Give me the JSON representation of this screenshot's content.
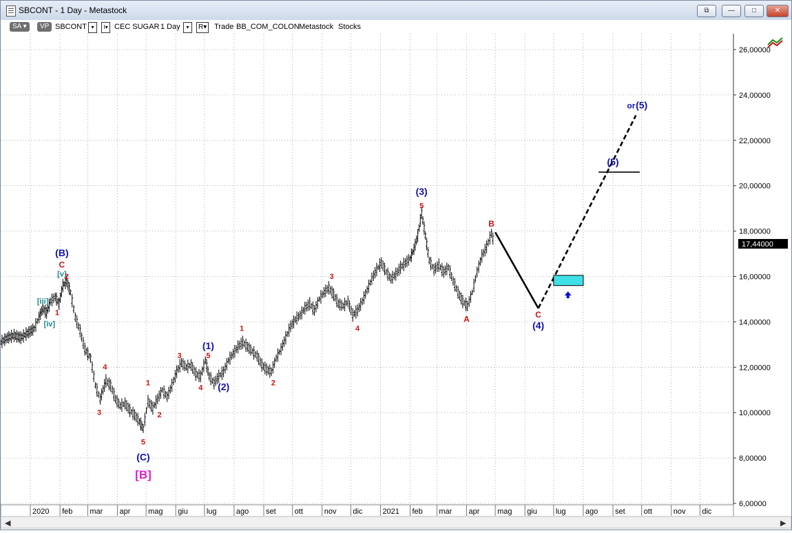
{
  "window": {
    "title": "SBCONT - 1 Day - Metastock",
    "buttons": [
      "⧉",
      "—",
      "□",
      "✕"
    ]
  },
  "toolbar": {
    "sa": "SA",
    "vp": "VP",
    "symbol": "SBCONT",
    "name": "CEC SUGAR",
    "period": "1 Day",
    "r": "R",
    "trade": "Trade",
    "provider": "BB_COM_COLON",
    "source": "Metastock",
    "type": "Stocks"
  },
  "colors": {
    "price": "#000000",
    "minor_label": "#d01010",
    "major_label": "#1010b0",
    "sub_label": "#208888",
    "abc_label": "#e020c8",
    "target_box": "#40e0e8",
    "last_price_bg": "#000000"
  },
  "chart_data": {
    "type": "line",
    "title": "",
    "xlabel": "",
    "ylabel": "",
    "ylim": [
      6,
      27
    ],
    "y_ticks": [
      "6,00000",
      "8,00000",
      "10,00000",
      "12,00000",
      "14,00000",
      "16,00000",
      "18,00000",
      "20,00000",
      "22,00000",
      "24,00000",
      "26,00000"
    ],
    "x_ticks": [
      {
        "label": "2020",
        "x": "2020-01"
      },
      {
        "label": "feb",
        "x": "2020-02"
      },
      {
        "label": "mar",
        "x": "2020-03"
      },
      {
        "label": "apr",
        "x": "2020-04"
      },
      {
        "label": "mag",
        "x": "2020-05"
      },
      {
        "label": "giu",
        "x": "2020-06"
      },
      {
        "label": "lug",
        "x": "2020-07"
      },
      {
        "label": "ago",
        "x": "2020-08"
      },
      {
        "label": "set",
        "x": "2020-09"
      },
      {
        "label": "ott",
        "x": "2020-10"
      },
      {
        "label": "nov",
        "x": "2020-11"
      },
      {
        "label": "dic",
        "x": "2020-12"
      },
      {
        "label": "2021",
        "x": "2021-01"
      },
      {
        "label": "feb",
        "x": "2021-02"
      },
      {
        "label": "mar",
        "x": "2021-03"
      },
      {
        "label": "apr",
        "x": "2021-04"
      },
      {
        "label": "mag",
        "x": "2021-05"
      },
      {
        "label": "giu",
        "x": "2021-06"
      },
      {
        "label": "lug",
        "x": "2021-07"
      },
      {
        "label": "ago",
        "x": "2021-08"
      },
      {
        "label": "set",
        "x": "2021-09"
      },
      {
        "label": "ott",
        "x": "2021-10"
      },
      {
        "label": "nov",
        "x": "2021-11"
      },
      {
        "label": "dic",
        "x": "2021-12"
      }
    ],
    "grid": true,
    "last_price": {
      "value": 17.44,
      "label": "17,44000"
    },
    "series": [
      {
        "values": [
          [
            "2019-12-01",
            13.1
          ],
          [
            "2019-12-08",
            13.3
          ],
          [
            "2019-12-15",
            13.4
          ],
          [
            "2019-12-22",
            13.3
          ],
          [
            "2019-12-29",
            13.5
          ],
          [
            "2020-01-05",
            13.7
          ],
          [
            "2020-01-10",
            14.2
          ],
          [
            "2020-01-14",
            14.6
          ],
          [
            "2020-01-18",
            14.4
          ],
          [
            "2020-01-22",
            14.9
          ],
          [
            "2020-01-27",
            15.1
          ],
          [
            "2020-01-31",
            14.8
          ],
          [
            "2020-02-04",
            15.6
          ],
          [
            "2020-02-08",
            15.8
          ],
          [
            "2020-02-12",
            15.3
          ],
          [
            "2020-02-17",
            14.2
          ],
          [
            "2020-02-22",
            13.6
          ],
          [
            "2020-02-27",
            12.8
          ],
          [
            "2020-03-04",
            12.4
          ],
          [
            "2020-03-09",
            11.2
          ],
          [
            "2020-03-14",
            10.6
          ],
          [
            "2020-03-20",
            11.4
          ],
          [
            "2020-03-25",
            11.2
          ],
          [
            "2020-03-30",
            10.6
          ],
          [
            "2020-04-04",
            10.3
          ],
          [
            "2020-04-09",
            10.4
          ],
          [
            "2020-04-14",
            10.1
          ],
          [
            "2020-04-19",
            9.9
          ],
          [
            "2020-04-24",
            9.6
          ],
          [
            "2020-04-28",
            9.3
          ],
          [
            "2020-05-03",
            10.5
          ],
          [
            "2020-05-08",
            10.2
          ],
          [
            "2020-05-13",
            10.6
          ],
          [
            "2020-05-18",
            11.0
          ],
          [
            "2020-05-23",
            10.7
          ],
          [
            "2020-05-28",
            11.2
          ],
          [
            "2020-06-02",
            11.8
          ],
          [
            "2020-06-07",
            12.2
          ],
          [
            "2020-06-12",
            12.0
          ],
          [
            "2020-06-17",
            12.1
          ],
          [
            "2020-06-22",
            11.7
          ],
          [
            "2020-06-27",
            11.6
          ],
          [
            "2020-07-02",
            12.3
          ],
          [
            "2020-07-06",
            11.6
          ],
          [
            "2020-07-11",
            11.3
          ],
          [
            "2020-07-16",
            11.6
          ],
          [
            "2020-07-21",
            11.8
          ],
          [
            "2020-07-26",
            12.3
          ],
          [
            "2020-07-31",
            12.6
          ],
          [
            "2020-08-05",
            12.9
          ],
          [
            "2020-08-10",
            13.1
          ],
          [
            "2020-08-15",
            12.9
          ],
          [
            "2020-08-20",
            12.7
          ],
          [
            "2020-08-25",
            12.5
          ],
          [
            "2020-08-30",
            12.1
          ],
          [
            "2020-09-04",
            11.9
          ],
          [
            "2020-09-09",
            11.8
          ],
          [
            "2020-09-14",
            12.4
          ],
          [
            "2020-09-19",
            12.8
          ],
          [
            "2020-09-24",
            13.3
          ],
          [
            "2020-09-29",
            13.8
          ],
          [
            "2020-10-04",
            14.1
          ],
          [
            "2020-10-09",
            14.3
          ],
          [
            "2020-10-14",
            14.6
          ],
          [
            "2020-10-19",
            14.8
          ],
          [
            "2020-10-24",
            14.5
          ],
          [
            "2020-10-29",
            15.0
          ],
          [
            "2020-11-03",
            15.3
          ],
          [
            "2020-11-08",
            15.5
          ],
          [
            "2020-11-13",
            15.2
          ],
          [
            "2020-11-18",
            14.8
          ],
          [
            "2020-11-23",
            14.7
          ],
          [
            "2020-11-28",
            14.9
          ],
          [
            "2020-12-03",
            14.3
          ],
          [
            "2020-12-08",
            14.5
          ],
          [
            "2020-12-13",
            14.9
          ],
          [
            "2020-12-18",
            15.4
          ],
          [
            "2020-12-23",
            15.9
          ],
          [
            "2020-12-28",
            16.3
          ],
          [
            "2021-01-02",
            16.6
          ],
          [
            "2021-01-07",
            16.2
          ],
          [
            "2021-01-12",
            15.9
          ],
          [
            "2021-01-17",
            16.1
          ],
          [
            "2021-01-22",
            16.4
          ],
          [
            "2021-01-27",
            16.6
          ],
          [
            "2021-02-01",
            16.8
          ],
          [
            "2021-02-05",
            17.2
          ],
          [
            "2021-02-09",
            17.8
          ],
          [
            "2021-02-13",
            18.8
          ],
          [
            "2021-02-17",
            17.8
          ],
          [
            "2021-02-21",
            16.7
          ],
          [
            "2021-02-26",
            16.3
          ],
          [
            "2021-03-03",
            16.5
          ],
          [
            "2021-03-08",
            16.2
          ],
          [
            "2021-03-13",
            16.4
          ],
          [
            "2021-03-18",
            15.8
          ],
          [
            "2021-03-23",
            15.3
          ],
          [
            "2021-03-28",
            14.9
          ],
          [
            "2021-04-02",
            14.7
          ],
          [
            "2021-04-07",
            15.3
          ],
          [
            "2021-04-12",
            16.2
          ],
          [
            "2021-04-17",
            16.9
          ],
          [
            "2021-04-22",
            17.3
          ],
          [
            "2021-04-27",
            17.9
          ],
          [
            "2021-04-30",
            17.44
          ]
        ]
      }
    ],
    "projections": [
      {
        "name": "wave-c-down",
        "style": "solid",
        "from": [
          "2021-05-01",
          17.95
        ],
        "to": [
          "2021-06-15",
          14.6
        ]
      },
      {
        "name": "wave-5-up",
        "style": "dashed",
        "from": [
          "2021-06-15",
          14.6
        ],
        "to": [
          "2021-09-25",
          23.1
        ]
      },
      {
        "name": "wave-5-target",
        "style": "solid",
        "from": [
          "2021-08-17",
          20.6
        ],
        "to": [
          "2021-09-29",
          20.6
        ]
      }
    ],
    "target_zone": {
      "x0": "2021-07-01",
      "x1": "2021-08-01",
      "y0": 15.6,
      "y1": 16.05
    },
    "arrow_up": {
      "x": "2021-07-16",
      "y": 15.1
    },
    "annotations": [
      {
        "text": "[iii]",
        "x": "2020-01-14",
        "y": 14.8,
        "color": "sub_label",
        "size": 11
      },
      {
        "text": "[iv]",
        "x": "2020-01-21",
        "y": 13.8,
        "color": "sub_label",
        "size": 11
      },
      {
        "text": "[v]",
        "x": "2020-02-03",
        "y": 16.0,
        "color": "sub_label",
        "size": 11
      },
      {
        "text": "1",
        "x": "2020-01-29",
        "y": 14.3,
        "color": "minor_label",
        "size": 11
      },
      {
        "text": "2",
        "x": "2020-02-08",
        "y": 15.9,
        "color": "minor_label",
        "size": 11
      },
      {
        "text": "C",
        "x": "2020-02-03",
        "y": 16.4,
        "color": "minor_label",
        "size": 12
      },
      {
        "text": "(B)",
        "x": "2020-02-03",
        "y": 16.9,
        "color": "major_label",
        "size": 14
      },
      {
        "text": "4",
        "x": "2020-03-19",
        "y": 11.9,
        "color": "minor_label",
        "size": 11
      },
      {
        "text": "3",
        "x": "2020-03-13",
        "y": 9.9,
        "color": "minor_label",
        "size": 11
      },
      {
        "text": "5",
        "x": "2020-04-28",
        "y": 8.6,
        "color": "minor_label",
        "size": 11
      },
      {
        "text": "(C)",
        "x": "2020-04-28",
        "y": 7.9,
        "color": "major_label",
        "size": 14
      },
      {
        "text": "[B]",
        "x": "2020-04-28",
        "y": 7.1,
        "color": "abc_label",
        "size": 17
      },
      {
        "text": "1",
        "x": "2020-05-03",
        "y": 11.2,
        "color": "minor_label",
        "size": 11
      },
      {
        "text": "2",
        "x": "2020-05-15",
        "y": 9.8,
        "color": "minor_label",
        "size": 11
      },
      {
        "text": "3",
        "x": "2020-06-05",
        "y": 12.4,
        "color": "minor_label",
        "size": 11
      },
      {
        "text": "4",
        "x": "2020-06-27",
        "y": 11.0,
        "color": "minor_label",
        "size": 11
      },
      {
        "text": "5",
        "x": "2020-07-05",
        "y": 12.4,
        "color": "minor_label",
        "size": 11
      },
      {
        "text": "(1)",
        "x": "2020-07-05",
        "y": 12.8,
        "color": "major_label",
        "size": 14
      },
      {
        "text": "(2)",
        "x": "2020-07-21",
        "y": 11.0,
        "color": "major_label",
        "size": 14
      },
      {
        "text": "1",
        "x": "2020-08-09",
        "y": 13.6,
        "color": "minor_label",
        "size": 11
      },
      {
        "text": "2",
        "x": "2020-09-11",
        "y": 11.2,
        "color": "minor_label",
        "size": 11
      },
      {
        "text": "3",
        "x": "2020-11-11",
        "y": 15.9,
        "color": "minor_label",
        "size": 11
      },
      {
        "text": "4",
        "x": "2020-12-08",
        "y": 13.6,
        "color": "minor_label",
        "size": 11
      },
      {
        "text": "5",
        "x": "2021-02-13",
        "y": 19.0,
        "color": "minor_label",
        "size": 11
      },
      {
        "text": "(3)",
        "x": "2021-02-13",
        "y": 19.6,
        "color": "major_label",
        "size": 14
      },
      {
        "text": "A",
        "x": "2021-04-01",
        "y": 14.0,
        "color": "minor_label",
        "size": 12
      },
      {
        "text": "B",
        "x": "2021-04-27",
        "y": 18.2,
        "color": "minor_label",
        "size": 12
      },
      {
        "text": "C",
        "x": "2021-06-15",
        "y": 14.2,
        "color": "minor_label",
        "size": 12
      },
      {
        "text": "(4)",
        "x": "2021-06-15",
        "y": 13.7,
        "color": "major_label",
        "size": 14
      },
      {
        "text": "(5)",
        "x": "2021-09-01",
        "y": 20.9,
        "color": "major_label",
        "size": 14
      },
      {
        "text": "or",
        "x": "2021-09-20",
        "y": 23.4,
        "color": "major_label",
        "size": 12
      },
      {
        "text": "(5)",
        "x": "2021-10-01",
        "y": 23.4,
        "color": "major_label",
        "size": 14
      }
    ]
  }
}
